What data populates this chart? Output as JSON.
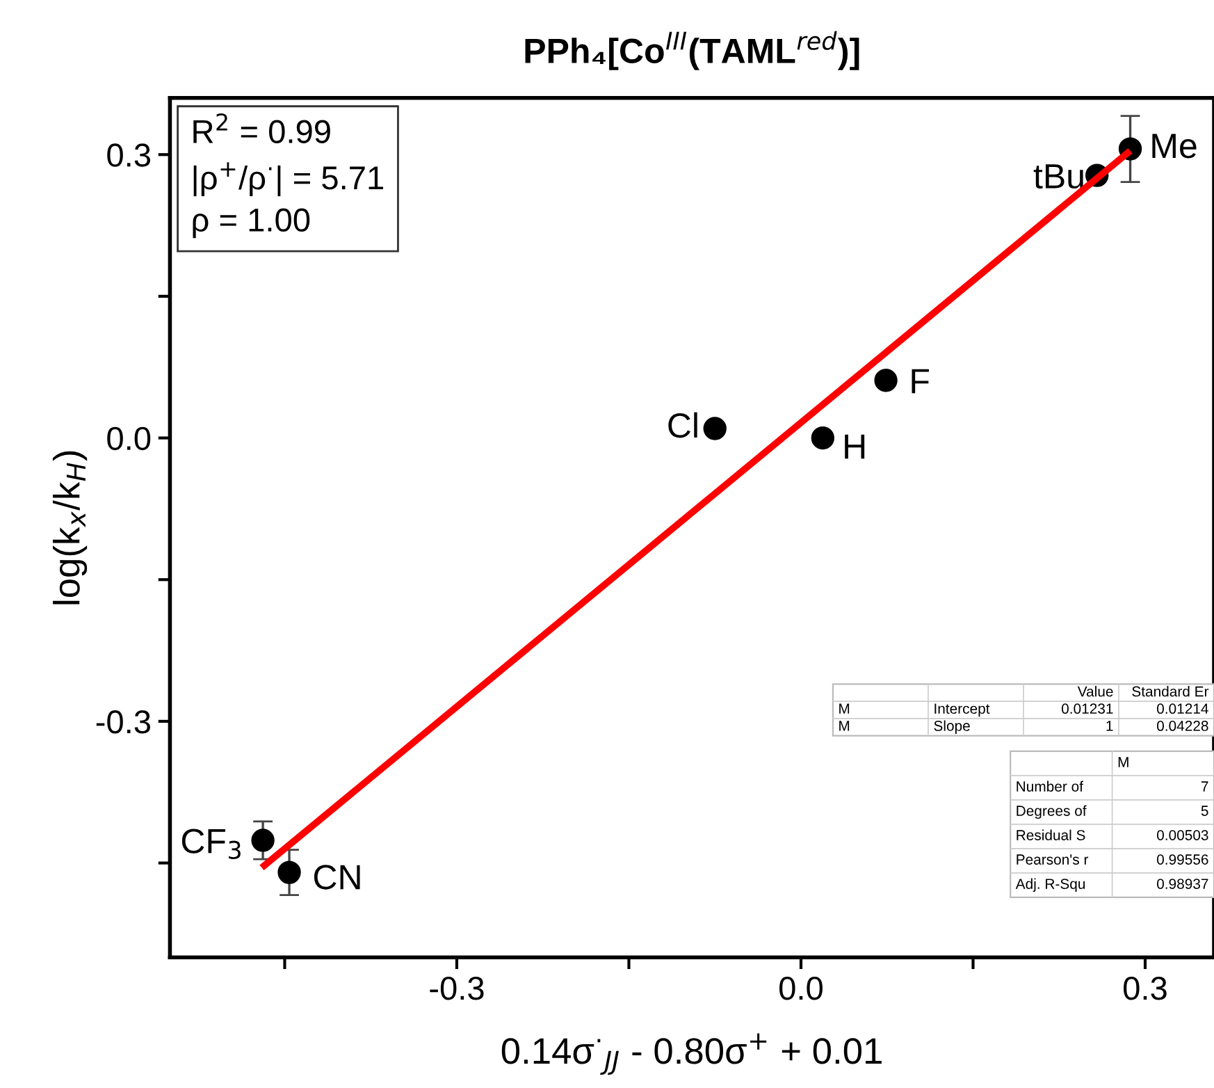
{
  "chart_data": {
    "type": "scatter",
    "title": "PPh₄[Co$^{III}$(TAML$^{red}$)]",
    "xlabel": "0.14σ$^{·}$$_{JJ}$ - 0.80σ$^{+}$ + 0.01",
    "ylabel": "log(k$_{x}$/k$_{H}$)",
    "xlim": [
      -0.55,
      0.36
    ],
    "ylim": [
      -0.55,
      0.36
    ],
    "xticks": [
      {
        "value": -0.45,
        "label": null
      },
      {
        "value": -0.3,
        "label": "-0.3"
      },
      {
        "value": -0.15,
        "label": null
      },
      {
        "value": 0.0,
        "label": "0.0"
      },
      {
        "value": 0.15,
        "label": null
      },
      {
        "value": 0.3,
        "label": "0.3"
      }
    ],
    "yticks": [
      {
        "value": -0.45,
        "label": null
      },
      {
        "value": -0.3,
        "label": "-0.3"
      },
      {
        "value": -0.15,
        "label": null
      },
      {
        "value": 0.0,
        "label": "0.0"
      },
      {
        "value": 0.15,
        "label": null
      },
      {
        "value": 0.3,
        "label": "0.3"
      }
    ],
    "grid": false,
    "series": [
      {
        "marker": "circle",
        "color": "#000000",
        "x": [
          0.287,
          0.258,
          0.074,
          -0.075,
          0.019,
          -0.469,
          -0.446
        ],
        "values": [
          0.306,
          0.278,
          0.061,
          0.01,
          0.0,
          -0.426,
          -0.46
        ],
        "errors": [
          0.035,
          null,
          null,
          null,
          null,
          0.02,
          0.024
        ]
      },
      {
        "type": "line",
        "color": "#ff0000",
        "x": [
          -0.47,
          0.287
        ],
        "values": [
          -0.455,
          0.304
        ]
      }
    ],
    "annotations": [
      "R$^{2}$ = 0.99",
      "|ρ$^{+}$/ρ$^{·}$| = 5.71",
      "ρ = 1.00",
      {
        "text": "Me",
        "x": 0.287,
        "y": 0.306
      },
      {
        "text": "tBu",
        "x": 0.258,
        "y": 0.278
      },
      {
        "text": "F",
        "x": 0.074,
        "y": 0.061
      },
      {
        "text": "Cl",
        "x": -0.075,
        "y": 0.01
      },
      {
        "text": "H",
        "x": 0.019,
        "y": 0.0
      },
      {
        "text": "CF$_{3}$",
        "x": -0.469,
        "y": -0.426
      },
      {
        "text": "CN",
        "x": -0.446,
        "y": -0.46
      },
      "\t\tValue\tStandard Er",
      "M\tIntercept\t0.01231\t0.01214",
      "M\tSlope\t1\t0.04228",
      "\tM",
      "Number of\t7",
      "Degrees of\t5",
      "Residual S\t0.00503",
      "Pearson's r\t0.99556",
      "Adj. R-Squ\t0.98937"
    ]
  }
}
